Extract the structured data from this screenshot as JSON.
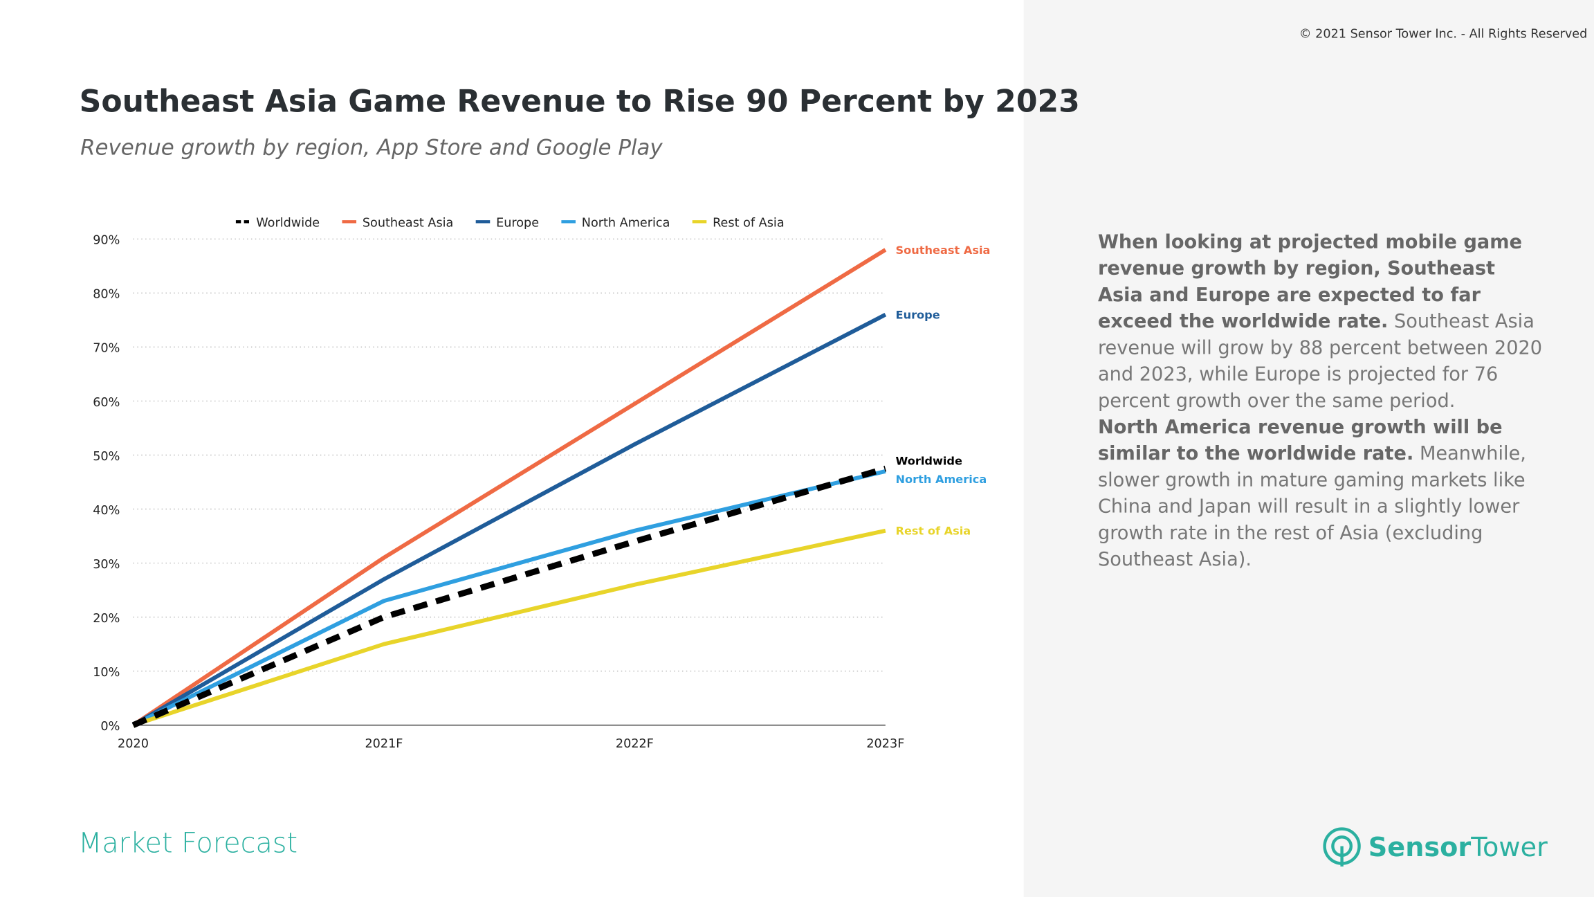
{
  "copyright": "© 2021 Sensor Tower Inc. - All Rights Reserved",
  "footer": "Market Forecast",
  "brand": [
    "Sensor",
    "Tower"
  ],
  "commentary": [
    [
      "When looking at projected mobile game revenue growth by region, Southeast Asia and Europe are expected to far exceed the worldwide rate.",
      "Southeast Asia revenue will grow by 88 percent between 2020 and 2023, while Europe is projected for 76 percent growth over the same period."
    ],
    [
      "North America revenue growth will be similar to the worldwide rate.",
      "Meanwhile, slower growth in mature gaming markets like China and Japan will result in a slightly lower growth rate in the rest of Asia (excluding Southeast Asia)."
    ]
  ],
  "chart_data": {
    "type": "line",
    "title": "Southeast Asia Game Revenue to Rise 90 Percent by 2023",
    "subtitle": "Revenue growth by region, App Store and Google Play",
    "categories": [
      "2020",
      "2021F",
      "2022F",
      "2023F"
    ],
    "series": [
      {
        "name": "Worldwide",
        "color": "#000000",
        "dashed": true,
        "values": [
          0,
          20,
          34,
          47.5
        ]
      },
      {
        "name": "Southeast Asia",
        "color": "#ef6a44",
        "values": [
          0,
          31,
          59.5,
          88
        ]
      },
      {
        "name": "Europe",
        "color": "#1f5c99",
        "values": [
          0,
          27,
          52,
          76
        ]
      },
      {
        "name": "North America",
        "color": "#2f9fe0",
        "values": [
          0,
          23,
          36,
          47
        ]
      },
      {
        "name": "Rest of Asia",
        "color": "#e8d42a",
        "values": [
          0,
          15,
          26,
          36
        ]
      }
    ],
    "ylim": [
      0,
      90
    ],
    "yticks": [
      {
        "value": 0,
        "label": "0%"
      },
      {
        "value": 10,
        "label": "10%"
      },
      {
        "value": 20,
        "label": "20%"
      },
      {
        "value": 30,
        "label": "30%"
      },
      {
        "value": 40,
        "label": "40%"
      },
      {
        "value": 50,
        "label": "50%"
      },
      {
        "value": 60,
        "label": "60%"
      },
      {
        "value": 70,
        "label": "70%"
      },
      {
        "value": 80,
        "label": "80%"
      },
      {
        "value": 90,
        "label": "90%"
      }
    ],
    "grid": true,
    "legend": "top"
  }
}
